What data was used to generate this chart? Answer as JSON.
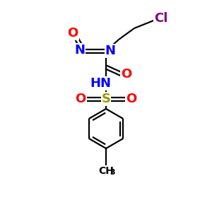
{
  "bg_color": "#ffffff",
  "atom_colors": {
    "N": "#0000ff",
    "O": "#ff0000",
    "S": "#999900",
    "Cl": "#800080",
    "C": "#000000"
  },
  "bond_color": "#000000",
  "lw": 1.6,
  "fs": 13,
  "fs_small": 10
}
